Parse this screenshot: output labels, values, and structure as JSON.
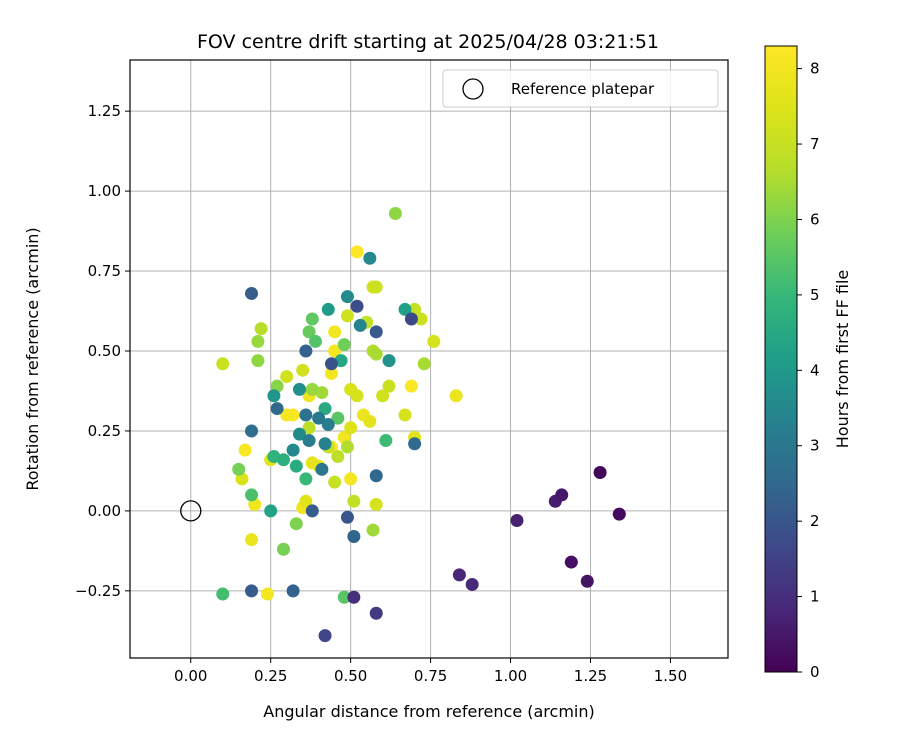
{
  "chart_data": {
    "type": "scatter",
    "title": "FOV centre drift starting at 2025/04/28 03:21:51",
    "xlabel": "Angular distance from reference (arcmin)",
    "ylabel": "Rotation from reference (arcmin)",
    "xlim": [
      -0.19,
      1.68
    ],
    "ylim": [
      -0.46,
      1.41
    ],
    "xticks": [
      0.0,
      0.25,
      0.5,
      0.75,
      1.0,
      1.25,
      1.5
    ],
    "xtick_labels": [
      "0.00",
      "0.25",
      "0.50",
      "0.75",
      "1.00",
      "1.25",
      "1.50"
    ],
    "yticks": [
      -0.25,
      0.0,
      0.25,
      0.5,
      0.75,
      1.0,
      1.25
    ],
    "ytick_labels": [
      "−0.25",
      "0.00",
      "0.25",
      "0.50",
      "0.75",
      "1.00",
      "1.25"
    ],
    "grid": true,
    "legend": {
      "position": "upper-right",
      "label": "Reference platepar"
    },
    "reference_point": {
      "x": 0.0,
      "y": 0.0
    },
    "colorbar": {
      "label": "Hours from first FF file",
      "range": [
        0,
        8.3
      ],
      "ticks": [
        0,
        1,
        2,
        3,
        4,
        5,
        6,
        7,
        8
      ],
      "tick_labels": [
        "0",
        "1",
        "2",
        "3",
        "4",
        "5",
        "6",
        "7",
        "8"
      ],
      "colormap": "viridis"
    },
    "points": [
      {
        "x": 1.28,
        "y": 0.12,
        "h": 0.1
      },
      {
        "x": 1.16,
        "y": 0.05,
        "h": 0.5
      },
      {
        "x": 1.14,
        "y": 0.03,
        "h": 0.6
      },
      {
        "x": 1.34,
        "y": -0.01,
        "h": 0.2
      },
      {
        "x": 1.02,
        "y": -0.03,
        "h": 0.7
      },
      {
        "x": 1.19,
        "y": -0.16,
        "h": 0.3
      },
      {
        "x": 1.24,
        "y": -0.22,
        "h": 0.4
      },
      {
        "x": 0.84,
        "y": -0.2,
        "h": 0.8
      },
      {
        "x": 0.88,
        "y": -0.23,
        "h": 0.9
      },
      {
        "x": 0.51,
        "y": -0.27,
        "h": 1.0
      },
      {
        "x": 0.58,
        "y": -0.32,
        "h": 1.3
      },
      {
        "x": 0.42,
        "y": -0.39,
        "h": 1.6
      },
      {
        "x": 0.19,
        "y": -0.25,
        "h": 2.2
      },
      {
        "x": 0.32,
        "y": -0.25,
        "h": 2.3
      },
      {
        "x": 0.19,
        "y": 0.68,
        "h": 2.2
      },
      {
        "x": 0.52,
        "y": 0.64,
        "h": 1.8
      },
      {
        "x": 0.69,
        "y": 0.6,
        "h": 1.7
      },
      {
        "x": 0.58,
        "y": 0.56,
        "h": 2.1
      },
      {
        "x": 0.36,
        "y": 0.5,
        "h": 2.3
      },
      {
        "x": 0.44,
        "y": 0.46,
        "h": 1.9
      },
      {
        "x": 0.49,
        "y": -0.02,
        "h": 2.0
      },
      {
        "x": 0.51,
        "y": -0.08,
        "h": 2.4
      },
      {
        "x": 0.38,
        "y": 0.0,
        "h": 2.2
      },
      {
        "x": 0.58,
        "y": 0.11,
        "h": 2.5
      },
      {
        "x": 0.7,
        "y": 0.21,
        "h": 2.6
      },
      {
        "x": 0.19,
        "y": 0.25,
        "h": 2.7
      },
      {
        "x": 0.27,
        "y": 0.32,
        "h": 2.5
      },
      {
        "x": 0.36,
        "y": 0.3,
        "h": 2.8
      },
      {
        "x": 0.4,
        "y": 0.29,
        "h": 3.0
      },
      {
        "x": 0.43,
        "y": 0.27,
        "h": 3.2
      },
      {
        "x": 0.37,
        "y": 0.22,
        "h": 3.1
      },
      {
        "x": 0.41,
        "y": 0.13,
        "h": 2.9
      },
      {
        "x": 0.56,
        "y": 0.79,
        "h": 3.5
      },
      {
        "x": 0.49,
        "y": 0.67,
        "h": 3.6
      },
      {
        "x": 0.53,
        "y": 0.58,
        "h": 3.4
      },
      {
        "x": 0.62,
        "y": 0.47,
        "h": 3.8
      },
      {
        "x": 0.34,
        "y": 0.38,
        "h": 3.7
      },
      {
        "x": 0.26,
        "y": 0.36,
        "h": 3.9
      },
      {
        "x": 0.42,
        "y": 0.21,
        "h": 3.3
      },
      {
        "x": 0.32,
        "y": 0.19,
        "h": 3.5
      },
      {
        "x": 0.34,
        "y": 0.24,
        "h": 3.6
      },
      {
        "x": 0.43,
        "y": 0.63,
        "h": 4.1
      },
      {
        "x": 0.67,
        "y": 0.63,
        "h": 4.2
      },
      {
        "x": 0.47,
        "y": 0.47,
        "h": 4.4
      },
      {
        "x": 0.42,
        "y": 0.32,
        "h": 4.5
      },
      {
        "x": 0.25,
        "y": 0.0,
        "h": 4.3
      },
      {
        "x": 0.33,
        "y": 0.14,
        "h": 4.6
      },
      {
        "x": 0.26,
        "y": 0.17,
        "h": 4.8
      },
      {
        "x": 0.29,
        "y": 0.16,
        "h": 4.7
      },
      {
        "x": 0.36,
        "y": 0.1,
        "h": 5.0
      },
      {
        "x": 0.1,
        "y": -0.26,
        "h": 5.2
      },
      {
        "x": 0.48,
        "y": -0.27,
        "h": 5.5
      },
      {
        "x": 0.19,
        "y": 0.05,
        "h": 5.3
      },
      {
        "x": 0.61,
        "y": 0.22,
        "h": 5.1
      },
      {
        "x": 0.38,
        "y": 0.6,
        "h": 5.6
      },
      {
        "x": 0.39,
        "y": 0.53,
        "h": 5.4
      },
      {
        "x": 0.37,
        "y": 0.56,
        "h": 5.7
      },
      {
        "x": 0.48,
        "y": 0.52,
        "h": 5.8
      },
      {
        "x": 0.46,
        "y": 0.29,
        "h": 5.5
      },
      {
        "x": 0.29,
        "y": -0.12,
        "h": 5.9
      },
      {
        "x": 0.33,
        "y": -0.04,
        "h": 6.0
      },
      {
        "x": 0.15,
        "y": 0.13,
        "h": 5.9
      },
      {
        "x": 0.27,
        "y": 0.39,
        "h": 6.1
      },
      {
        "x": 0.21,
        "y": 0.53,
        "h": 6.3
      },
      {
        "x": 0.21,
        "y": 0.47,
        "h": 6.2
      },
      {
        "x": 0.41,
        "y": 0.37,
        "h": 6.4
      },
      {
        "x": 0.64,
        "y": 0.93,
        "h": 6.2
      },
      {
        "x": 0.58,
        "y": 0.49,
        "h": 6.5
      },
      {
        "x": 0.38,
        "y": 0.38,
        "h": 6.3
      },
      {
        "x": 0.57,
        "y": -0.06,
        "h": 6.4
      },
      {
        "x": 0.49,
        "y": 0.2,
        "h": 6.6
      },
      {
        "x": 0.57,
        "y": 0.5,
        "h": 6.6
      },
      {
        "x": 0.22,
        "y": 0.57,
        "h": 6.7
      },
      {
        "x": 0.37,
        "y": 0.26,
        "h": 6.8
      },
      {
        "x": 0.46,
        "y": 0.17,
        "h": 6.8
      },
      {
        "x": 0.51,
        "y": 0.03,
        "h": 6.9
      },
      {
        "x": 0.45,
        "y": 0.09,
        "h": 7.0
      },
      {
        "x": 0.58,
        "y": 0.7,
        "h": 7.1
      },
      {
        "x": 0.57,
        "y": 0.7,
        "h": 7.2
      },
      {
        "x": 0.7,
        "y": 0.63,
        "h": 7.0
      },
      {
        "x": 0.72,
        "y": 0.6,
        "h": 7.1
      },
      {
        "x": 0.73,
        "y": 0.46,
        "h": 6.5
      },
      {
        "x": 0.76,
        "y": 0.53,
        "h": 7.3
      },
      {
        "x": 0.1,
        "y": 0.46,
        "h": 7.1
      },
      {
        "x": 0.35,
        "y": 0.44,
        "h": 7.2
      },
      {
        "x": 0.55,
        "y": 0.59,
        "h": 6.9
      },
      {
        "x": 0.49,
        "y": 0.61,
        "h": 7.2
      },
      {
        "x": 0.3,
        "y": 0.42,
        "h": 7.2
      },
      {
        "x": 0.43,
        "y": 0.2,
        "h": 7.0
      },
      {
        "x": 0.5,
        "y": 0.38,
        "h": 7.4
      },
      {
        "x": 0.52,
        "y": 0.36,
        "h": 7.3
      },
      {
        "x": 0.6,
        "y": 0.36,
        "h": 7.2
      },
      {
        "x": 0.62,
        "y": 0.39,
        "h": 7.1
      },
      {
        "x": 0.67,
        "y": 0.3,
        "h": 7.3
      },
      {
        "x": 0.5,
        "y": 0.26,
        "h": 7.5
      },
      {
        "x": 0.58,
        "y": 0.02,
        "h": 7.3
      },
      {
        "x": 0.36,
        "y": 0.03,
        "h": 7.6
      },
      {
        "x": 0.16,
        "y": 0.1,
        "h": 7.4
      },
      {
        "x": 0.19,
        "y": -0.09,
        "h": 7.8
      },
      {
        "x": 0.7,
        "y": 0.23,
        "h": 7.6
      },
      {
        "x": 0.56,
        "y": 0.28,
        "h": 7.7
      },
      {
        "x": 0.54,
        "y": 0.3,
        "h": 7.9
      },
      {
        "x": 0.25,
        "y": 0.16,
        "h": 7.6
      },
      {
        "x": 0.38,
        "y": 0.15,
        "h": 7.7
      },
      {
        "x": 0.4,
        "y": 0.14,
        "h": 7.8
      },
      {
        "x": 0.35,
        "y": 0.01,
        "h": 7.9
      },
      {
        "x": 0.2,
        "y": 0.02,
        "h": 8.0
      },
      {
        "x": 0.24,
        "y": -0.26,
        "h": 8.1
      },
      {
        "x": 0.17,
        "y": 0.19,
        "h": 8.2
      },
      {
        "x": 0.3,
        "y": 0.3,
        "h": 8.1
      },
      {
        "x": 0.32,
        "y": 0.3,
        "h": 8.2
      },
      {
        "x": 0.37,
        "y": 0.36,
        "h": 7.9
      },
      {
        "x": 0.44,
        "y": 0.43,
        "h": 8.0
      },
      {
        "x": 0.45,
        "y": 0.5,
        "h": 8.1
      },
      {
        "x": 0.45,
        "y": 0.56,
        "h": 8.0
      },
      {
        "x": 0.52,
        "y": 0.81,
        "h": 8.3
      },
      {
        "x": 0.69,
        "y": 0.39,
        "h": 8.2
      },
      {
        "x": 0.83,
        "y": 0.36,
        "h": 7.8
      },
      {
        "x": 0.48,
        "y": 0.23,
        "h": 8.0
      },
      {
        "x": 0.5,
        "y": 0.1,
        "h": 8.1
      },
      {
        "x": 0.44,
        "y": 0.2,
        "h": 8.2
      }
    ]
  }
}
